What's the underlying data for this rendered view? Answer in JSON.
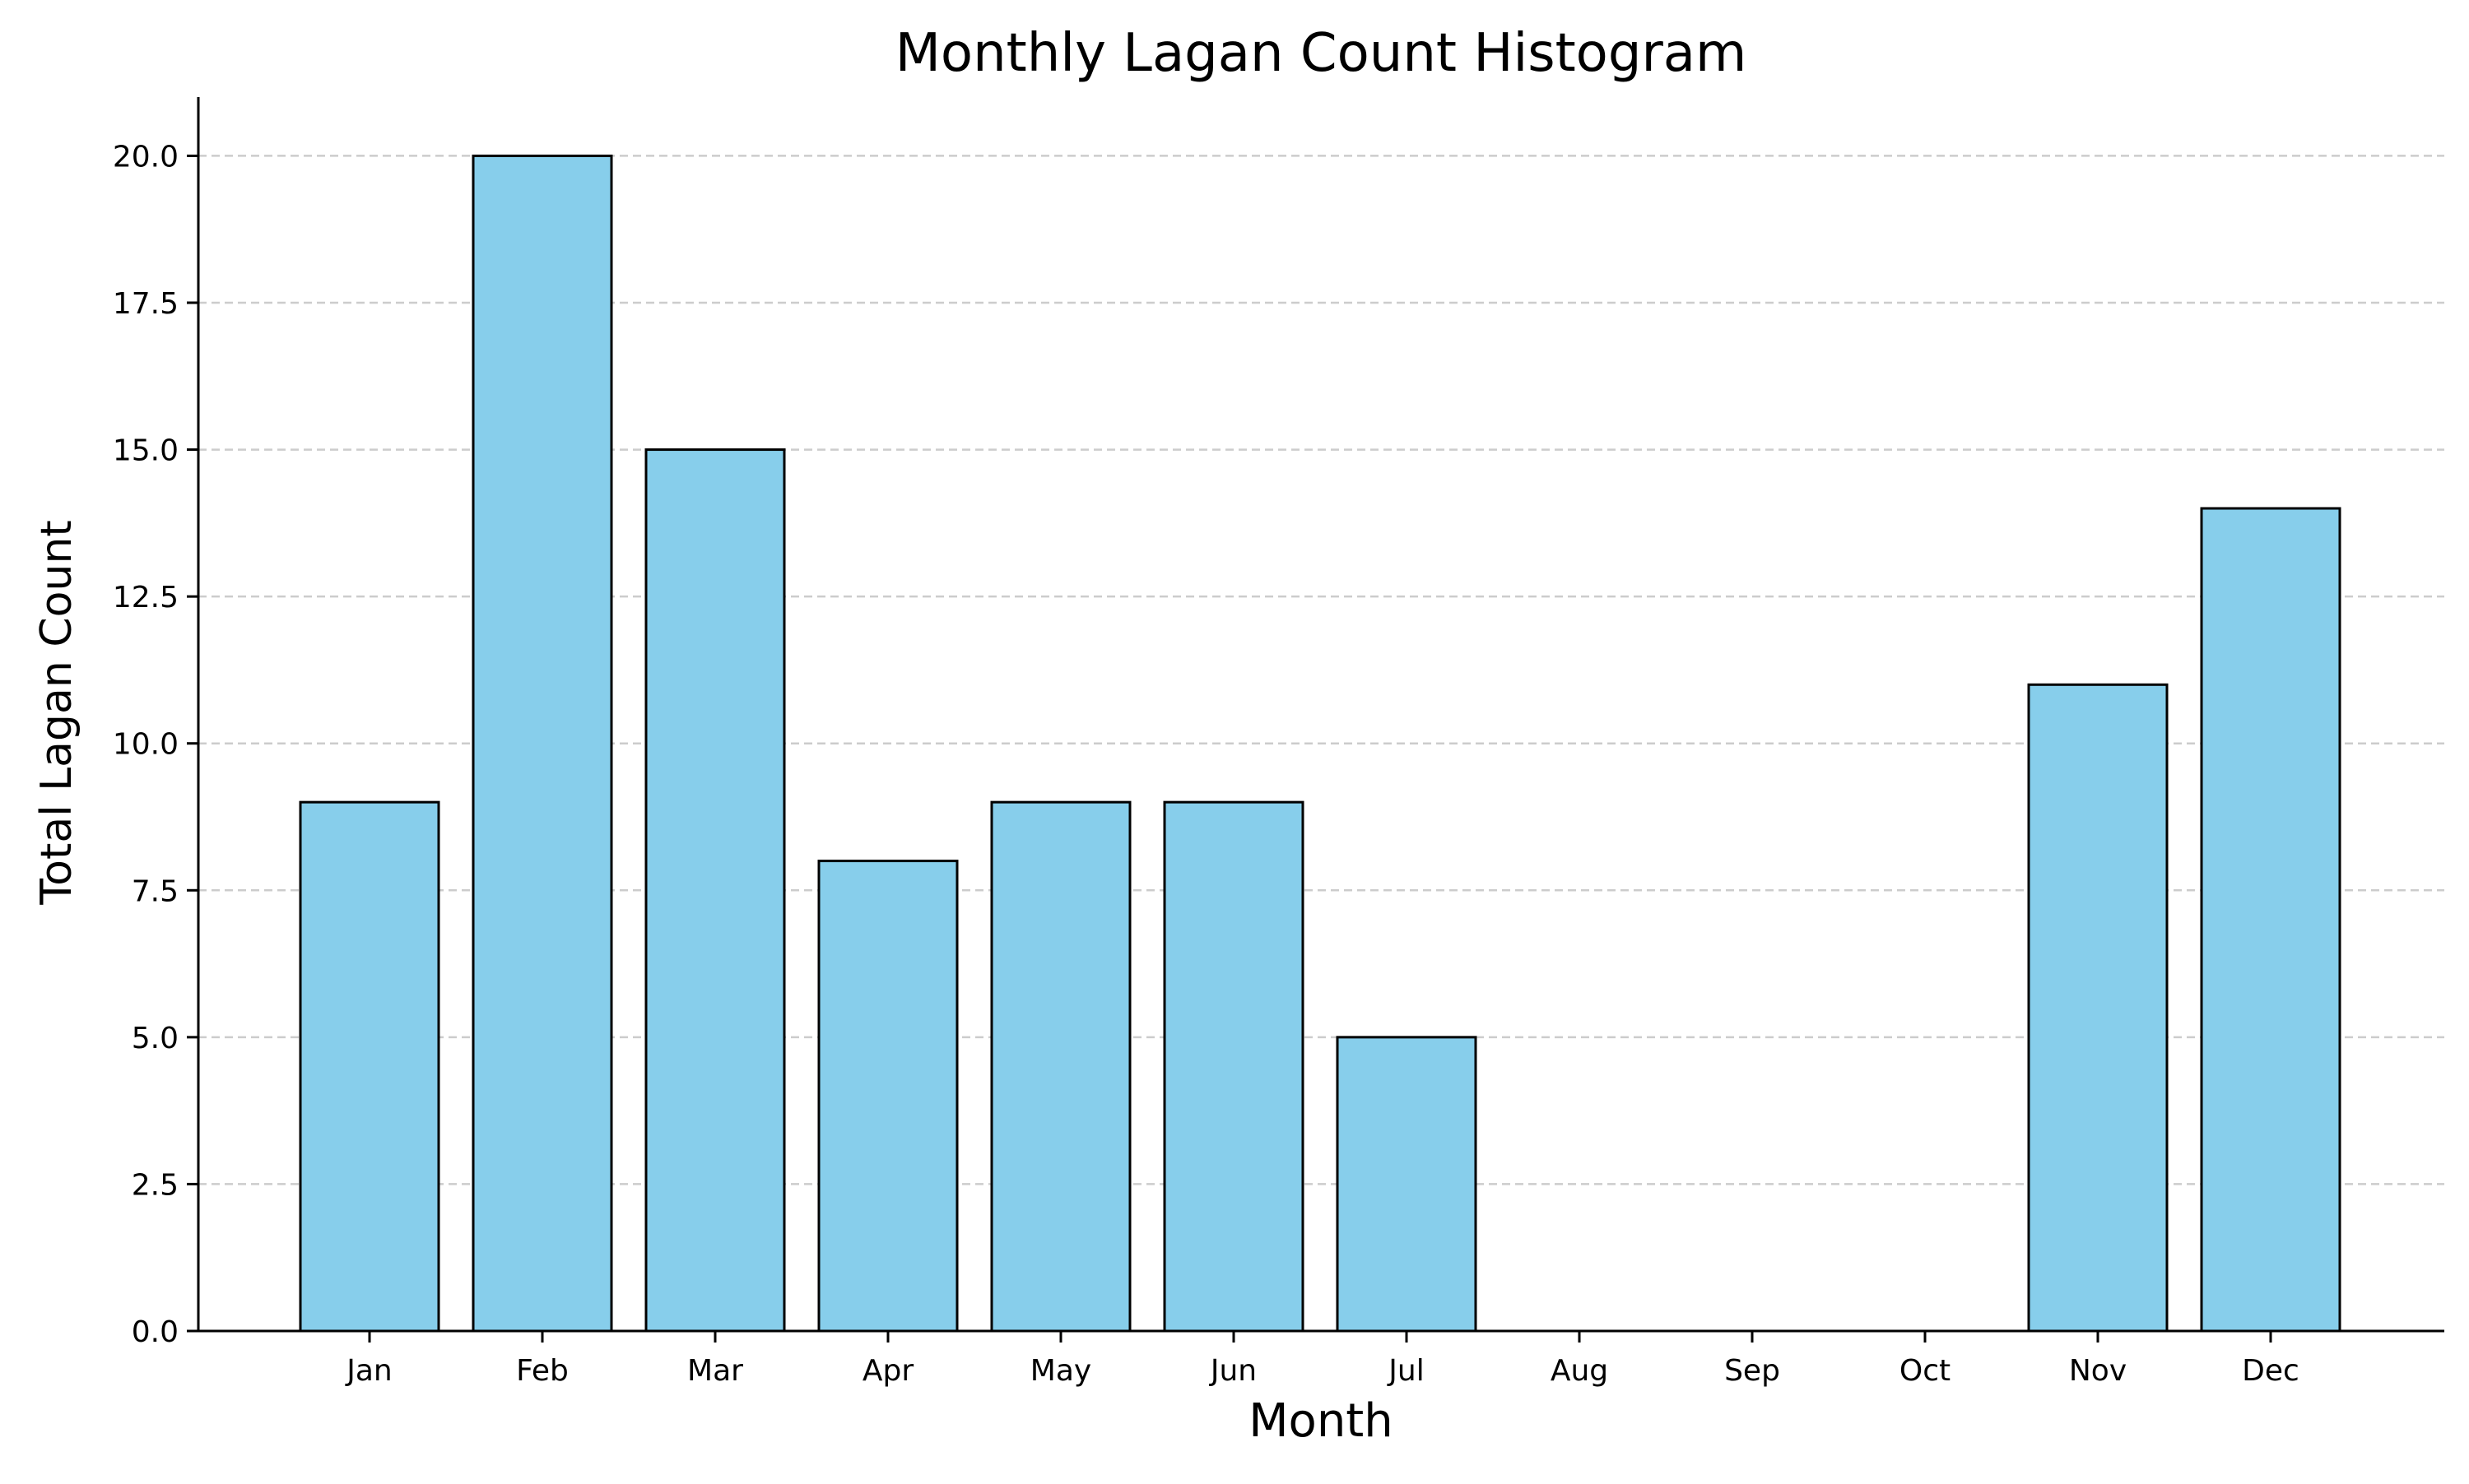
{
  "chart_data": {
    "type": "bar",
    "title": "Monthly Lagan Count Histogram",
    "xlabel": "Month",
    "ylabel": "Total Lagan Count",
    "categories": [
      "Jan",
      "Feb",
      "Mar",
      "Apr",
      "May",
      "Jun",
      "Jul",
      "Aug",
      "Sep",
      "Oct",
      "Nov",
      "Dec"
    ],
    "values": [
      9,
      20,
      15,
      8,
      9,
      9,
      5,
      0,
      0,
      0,
      11,
      14
    ],
    "ylim": [
      0,
      21
    ],
    "yticks": [
      0.0,
      2.5,
      5.0,
      7.5,
      10.0,
      12.5,
      15.0,
      17.5,
      20.0
    ],
    "ytick_labels": [
      "0.0",
      "2.5",
      "5.0",
      "7.5",
      "10.0",
      "12.5",
      "15.0",
      "17.5",
      "20.0"
    ],
    "grid": "y-dashed",
    "colors": {
      "bar_fill": "#87CEEB",
      "bar_edge": "#000000",
      "grid": "#cccccc",
      "axis": "#000000"
    }
  }
}
